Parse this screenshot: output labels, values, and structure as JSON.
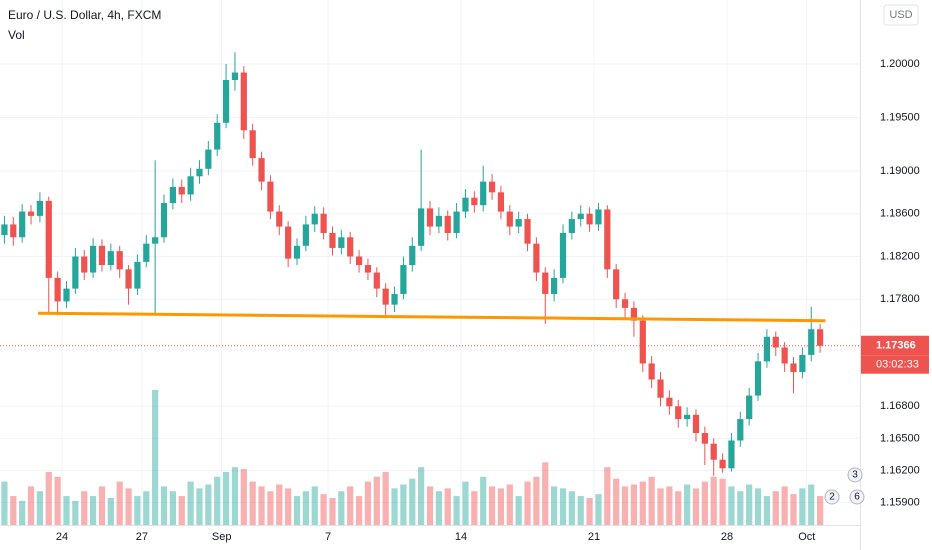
{
  "chart_data": {
    "type": "candlestick",
    "title": "Euro / U.S. Dollar, 4h, FXCM",
    "volume_label": "Vol",
    "currency": "USD",
    "countdown": "03:02:33",
    "up_color": "#26a69a",
    "down_color": "#ef5350",
    "xlim": [
      -0.5,
      96.5
    ],
    "xticks": [
      {
        "value": 6.5,
        "label": "24"
      },
      {
        "value": 15.5,
        "label": "27"
      },
      {
        "value": 24.5,
        "label": "Sep"
      },
      {
        "value": 36.5,
        "label": "7"
      },
      {
        "value": 51.5,
        "label": "14"
      },
      {
        "value": 66.5,
        "label": "21"
      },
      {
        "value": 81.5,
        "label": "28"
      },
      {
        "value": 90.5,
        "label": "Oct"
      }
    ],
    "ylim": [
      1.1569,
      1.20598
    ],
    "yticks": [
      {
        "value": 1.2,
        "label": "1.20000"
      },
      {
        "value": 1.195,
        "label": "1.19500"
      },
      {
        "value": 1.19,
        "label": "1.19000"
      },
      {
        "value": 1.186,
        "label": "1.18600"
      },
      {
        "value": 1.182,
        "label": "1.18200"
      },
      {
        "value": 1.178,
        "label": "1.17800"
      },
      {
        "value": 1.168,
        "label": "1.16800"
      },
      {
        "value": 1.165,
        "label": "1.16500"
      },
      {
        "value": 1.162,
        "label": "1.16200"
      },
      {
        "value": 1.159,
        "label": "1.15900"
      }
    ],
    "grid": true,
    "open": [
      1.184,
      1.185,
      1.1838,
      1.1862,
      1.1858,
      1.1872,
      1.18,
      1.1778,
      1.179,
      1.182,
      1.1805,
      1.183,
      1.1812,
      1.1825,
      1.1808,
      1.179,
      1.1815,
      1.1832,
      1.1838,
      1.187,
      1.1885,
      1.1878,
      1.1895,
      1.1902,
      1.192,
      1.1945,
      1.1985,
      1.1992,
      1.1938,
      1.1912,
      1.189,
      1.1862,
      1.1848,
      1.1818,
      1.183,
      1.185,
      1.186,
      1.1842,
      1.1828,
      1.1838,
      1.182,
      1.1812,
      1.1805,
      1.179,
      1.1775,
      1.1785,
      1.1812,
      1.183,
      1.1865,
      1.1848,
      1.1858,
      1.1842,
      1.1862,
      1.1875,
      1.1868,
      1.189,
      1.188,
      1.1862,
      1.1848,
      1.1855,
      1.1832,
      1.1805,
      1.1785,
      1.18,
      1.1842,
      1.1855,
      1.186,
      1.185,
      1.1864,
      1.1808,
      1.178,
      1.1772,
      1.176,
      1.172,
      1.1705,
      1.1688,
      1.168,
      1.1668,
      1.1672,
      1.1655,
      1.1645,
      1.163,
      1.1622,
      1.1648,
      1.1668,
      1.169,
      1.1722,
      1.1745,
      1.1735,
      1.172,
      1.1712,
      1.1728,
      1.1752
    ],
    "high": [
      1.1858,
      1.1857,
      1.1869,
      1.1868,
      1.188,
      1.1876,
      1.1806,
      1.1797,
      1.1828,
      1.1826,
      1.1837,
      1.1836,
      1.1832,
      1.183,
      1.1812,
      1.1822,
      1.184,
      1.191,
      1.1878,
      1.1893,
      1.1892,
      1.1903,
      1.191,
      1.1928,
      1.1953,
      1.2,
      1.2011,
      1.1998,
      1.1944,
      1.1918,
      1.1896,
      1.1868,
      1.1853,
      1.1837,
      1.1858,
      1.1867,
      1.1866,
      1.1848,
      1.1845,
      1.1843,
      1.1826,
      1.1818,
      1.181,
      1.1795,
      1.1792,
      1.182,
      1.1838,
      1.192,
      1.1872,
      1.1866,
      1.1863,
      1.187,
      1.1883,
      1.1881,
      1.1905,
      1.1897,
      1.1886,
      1.1868,
      1.1862,
      1.186,
      1.1838,
      1.181,
      1.1808,
      1.185,
      1.1862,
      1.1868,
      1.1866,
      1.187,
      1.1868,
      1.1813,
      1.1786,
      1.1778,
      1.1765,
      1.1727,
      1.1712,
      1.1695,
      1.1686,
      1.1679,
      1.1677,
      1.1661,
      1.165,
      1.1636,
      1.1655,
      1.1675,
      1.1697,
      1.173,
      1.1752,
      1.175,
      1.174,
      1.1726,
      1.1735,
      1.1773,
      1.1757
    ],
    "low": [
      1.1832,
      1.183,
      1.1833,
      1.185,
      1.1852,
      1.1768,
      1.1765,
      1.1772,
      1.1785,
      1.1798,
      1.18,
      1.1806,
      1.1807,
      1.18,
      1.1775,
      1.1784,
      1.181,
      1.1765,
      1.1833,
      1.1864,
      1.187,
      1.1872,
      1.1888,
      1.1896,
      1.1914,
      1.194,
      1.1975,
      1.193,
      1.1905,
      1.1882,
      1.1855,
      1.184,
      1.181,
      1.1812,
      1.1825,
      1.1843,
      1.1836,
      1.1821,
      1.1822,
      1.1813,
      1.1805,
      1.1798,
      1.1782,
      1.1765,
      1.1768,
      1.178,
      1.1806,
      1.1825,
      1.184,
      1.1842,
      1.1835,
      1.1837,
      1.1856,
      1.1861,
      1.1862,
      1.1873,
      1.1855,
      1.184,
      1.1842,
      1.1825,
      1.1797,
      1.1757,
      1.1778,
      1.1795,
      1.1836,
      1.1848,
      1.1843,
      1.1844,
      1.18,
      1.1772,
      1.1762,
      1.1745,
      1.1712,
      1.1697,
      1.168,
      1.1672,
      1.166,
      1.1661,
      1.1647,
      1.1625,
      1.1615,
      1.1618,
      1.1619,
      1.1642,
      1.1662,
      1.1685,
      1.1716,
      1.1727,
      1.1712,
      1.1692,
      1.1706,
      1.1722,
      1.173
    ],
    "close": [
      1.185,
      1.1838,
      1.1862,
      1.1858,
      1.1872,
      1.18,
      1.1778,
      1.179,
      1.182,
      1.1805,
      1.183,
      1.1812,
      1.1825,
      1.1808,
      1.179,
      1.1815,
      1.1832,
      1.1838,
      1.187,
      1.1885,
      1.1878,
      1.1895,
      1.1902,
      1.192,
      1.1945,
      1.1985,
      1.1992,
      1.1938,
      1.1912,
      1.189,
      1.1862,
      1.1848,
      1.1818,
      1.183,
      1.185,
      1.186,
      1.1842,
      1.1828,
      1.1838,
      1.182,
      1.1812,
      1.1805,
      1.179,
      1.1775,
      1.1785,
      1.1812,
      1.183,
      1.1865,
      1.1848,
      1.1858,
      1.1842,
      1.1862,
      1.1875,
      1.1868,
      1.189,
      1.188,
      1.1862,
      1.1848,
      1.1855,
      1.1832,
      1.1805,
      1.1785,
      1.18,
      1.1842,
      1.1855,
      1.186,
      1.185,
      1.1864,
      1.1808,
      1.178,
      1.1772,
      1.176,
      1.172,
      1.1705,
      1.1688,
      1.168,
      1.1668,
      1.1672,
      1.1655,
      1.1645,
      1.163,
      1.1622,
      1.1648,
      1.1668,
      1.169,
      1.1722,
      1.1745,
      1.1735,
      1.172,
      1.1712,
      1.1728,
      1.1752,
      1.17366
    ],
    "volume": [
      45,
      30,
      25,
      40,
      35,
      55,
      50,
      30,
      25,
      35,
      30,
      40,
      28,
      45,
      38,
      30,
      35,
      140,
      40,
      35,
      30,
      45,
      38,
      42,
      50,
      55,
      60,
      58,
      45,
      40,
      35,
      42,
      38,
      30,
      35,
      40,
      32,
      28,
      35,
      40,
      30,
      45,
      50,
      55,
      38,
      42,
      48,
      60,
      40,
      35,
      38,
      30,
      45,
      35,
      50,
      40,
      38,
      42,
      30,
      45,
      50,
      65,
      40,
      38,
      35,
      30,
      28,
      32,
      60,
      48,
      40,
      42,
      45,
      50,
      38,
      40,
      35,
      42,
      38,
      45,
      50,
      48,
      40,
      35,
      42,
      38,
      30,
      35,
      40,
      32,
      38,
      42,
      30
    ],
    "trendline": {
      "x": [
        3.8,
        92.6
      ],
      "y": [
        1.1767,
        1.176
      ],
      "color": "#ff9800"
    },
    "events": [
      "3",
      "2",
      "6"
    ]
  }
}
